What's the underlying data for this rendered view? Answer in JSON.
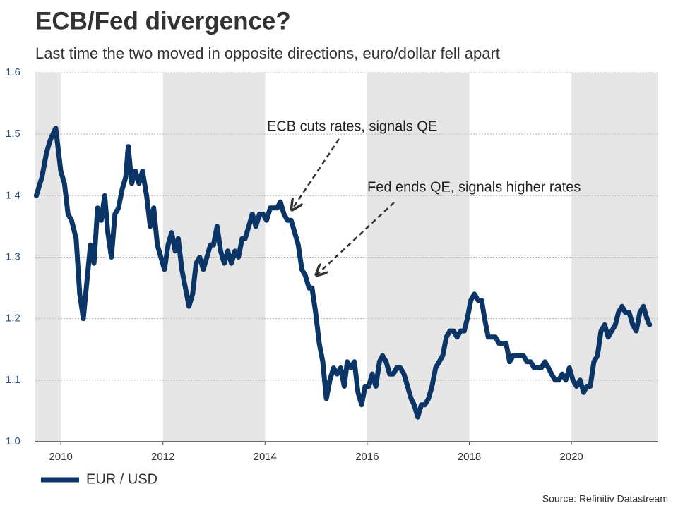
{
  "chart_data": {
    "type": "line",
    "title": "ECB/Fed divergence?",
    "subtitle": "Last time the two moved in opposite directions, euro/dollar fell apart",
    "source": "Source: Refinitiv Datastream",
    "xlim": [
      2009.5,
      2021.7
    ],
    "xticks": [
      2010,
      2012,
      2014,
      2016,
      2018,
      2020
    ],
    "ylim": [
      1.0,
      1.6
    ],
    "yticks": [
      {
        "value": 1.0,
        "label": "1.0"
      },
      1.1,
      1.2,
      1.3,
      1.4,
      1.5,
      1.6
    ],
    "grid": true,
    "legend": "bottom-left",
    "annotations": [
      "ECB cuts rates, signals QE",
      "Fed ends QE, signals higher rates"
    ],
    "x": [
      2009.52,
      2009.63,
      2009.72,
      2009.79,
      2009.9,
      2010.0,
      2010.07,
      2010.14,
      2010.21,
      2010.3,
      2010.37,
      2010.44,
      2010.51,
      2010.58,
      2010.65,
      2010.72,
      2010.79,
      2010.86,
      2010.92,
      2010.99,
      2011.06,
      2011.13,
      2011.2,
      2011.27,
      2011.32,
      2011.39,
      2011.46,
      2011.53,
      2011.6,
      2011.68,
      2011.75,
      2011.82,
      2011.89,
      2011.96,
      2012.03,
      2012.1,
      2012.17,
      2012.24,
      2012.3,
      2012.37,
      2012.44,
      2012.51,
      2012.58,
      2012.65,
      2012.72,
      2012.79,
      2012.86,
      2012.93,
      2012.99,
      2013.06,
      2013.13,
      2013.2,
      2013.27,
      2013.34,
      2013.41,
      2013.48,
      2013.55,
      2013.61,
      2013.68,
      2013.75,
      2013.82,
      2013.89,
      2013.96,
      2014.03,
      2014.1,
      2014.17,
      2014.24,
      2014.3,
      2014.37,
      2014.44,
      2014.51,
      2014.58,
      2014.65,
      2014.72,
      2014.79,
      2014.86,
      2014.92,
      2014.99,
      2015.06,
      2015.13,
      2015.2,
      2015.27,
      2015.34,
      2015.41,
      2015.48,
      2015.55,
      2015.61,
      2015.68,
      2015.75,
      2015.82,
      2015.89,
      2015.96,
      2016.03,
      2016.1,
      2016.17,
      2016.24,
      2016.3,
      2016.37,
      2016.44,
      2016.51,
      2016.58,
      2016.65,
      2016.72,
      2016.79,
      2016.86,
      2016.92,
      2016.99,
      2017.06,
      2017.13,
      2017.2,
      2017.27,
      2017.34,
      2017.41,
      2017.48,
      2017.55,
      2017.62,
      2017.69,
      2017.76,
      2017.83,
      2017.9,
      2017.96,
      2018.03,
      2018.1,
      2018.17,
      2018.24,
      2018.3,
      2018.37,
      2018.44,
      2018.51,
      2018.58,
      2018.65,
      2018.72,
      2018.79,
      2018.86,
      2018.92,
      2018.99,
      2019.06,
      2019.13,
      2019.2,
      2019.27,
      2019.34,
      2019.41,
      2019.48,
      2019.55,
      2019.61,
      2019.68,
      2019.75,
      2019.82,
      2019.89,
      2019.96,
      2020.03,
      2020.1,
      2020.17,
      2020.24,
      2020.3,
      2020.37,
      2020.44,
      2020.51,
      2020.58,
      2020.65,
      2020.72,
      2020.79,
      2020.86,
      2020.92,
      2020.99,
      2021.06,
      2021.13,
      2021.2,
      2021.27,
      2021.34,
      2021.41,
      2021.48,
      2021.53
    ],
    "series": [
      {
        "name": "EUR / USD",
        "color": "#0b3566",
        "values": [
          1.4,
          1.43,
          1.47,
          1.49,
          1.51,
          1.44,
          1.42,
          1.37,
          1.36,
          1.33,
          1.24,
          1.2,
          1.26,
          1.32,
          1.29,
          1.38,
          1.36,
          1.4,
          1.34,
          1.3,
          1.37,
          1.38,
          1.41,
          1.43,
          1.48,
          1.42,
          1.44,
          1.42,
          1.44,
          1.4,
          1.35,
          1.38,
          1.32,
          1.3,
          1.28,
          1.32,
          1.34,
          1.31,
          1.33,
          1.28,
          1.25,
          1.22,
          1.24,
          1.29,
          1.3,
          1.28,
          1.3,
          1.32,
          1.32,
          1.35,
          1.31,
          1.29,
          1.31,
          1.29,
          1.31,
          1.3,
          1.33,
          1.33,
          1.35,
          1.37,
          1.35,
          1.37,
          1.37,
          1.36,
          1.38,
          1.38,
          1.38,
          1.39,
          1.37,
          1.36,
          1.36,
          1.34,
          1.32,
          1.28,
          1.27,
          1.25,
          1.25,
          1.21,
          1.16,
          1.13,
          1.07,
          1.1,
          1.12,
          1.11,
          1.12,
          1.09,
          1.13,
          1.12,
          1.13,
          1.08,
          1.06,
          1.09,
          1.09,
          1.11,
          1.09,
          1.13,
          1.14,
          1.13,
          1.11,
          1.11,
          1.12,
          1.12,
          1.11,
          1.09,
          1.07,
          1.06,
          1.04,
          1.06,
          1.06,
          1.07,
          1.09,
          1.12,
          1.13,
          1.14,
          1.17,
          1.18,
          1.18,
          1.17,
          1.18,
          1.18,
          1.2,
          1.23,
          1.24,
          1.23,
          1.23,
          1.2,
          1.17,
          1.17,
          1.17,
          1.16,
          1.16,
          1.16,
          1.13,
          1.14,
          1.14,
          1.14,
          1.14,
          1.13,
          1.13,
          1.12,
          1.12,
          1.12,
          1.13,
          1.12,
          1.11,
          1.1,
          1.1,
          1.11,
          1.1,
          1.12,
          1.1,
          1.09,
          1.1,
          1.08,
          1.09,
          1.09,
          1.13,
          1.14,
          1.18,
          1.19,
          1.17,
          1.18,
          1.19,
          1.21,
          1.22,
          1.21,
          1.21,
          1.19,
          1.18,
          1.21,
          1.22,
          1.2,
          1.19
        ]
      }
    ]
  }
}
